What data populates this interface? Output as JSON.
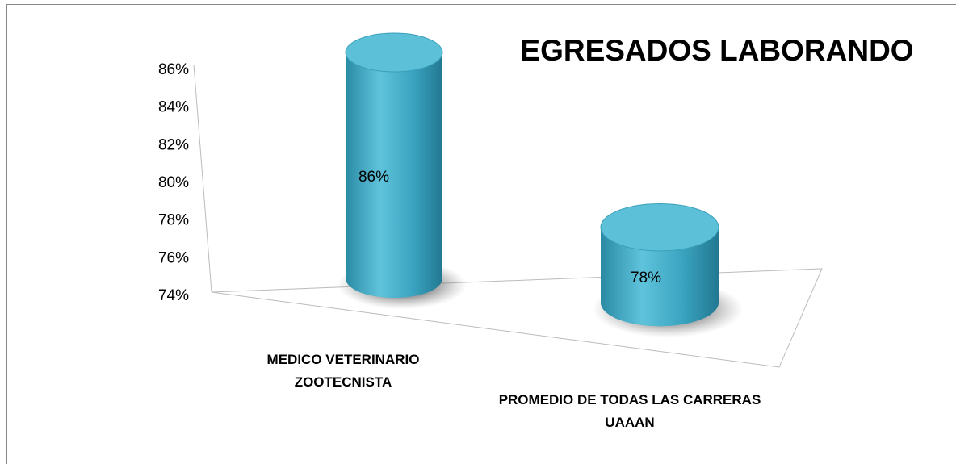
{
  "chart_data": {
    "type": "bar3d",
    "title": "EGRESADOS LABORANDO",
    "categories": [
      "MEDICO VETERINARIO ZOOTECNISTA",
      "PROMEDIO DE TODAS LAS CARRERAS UAAAN"
    ],
    "values": [
      86,
      78
    ],
    "value_labels": [
      "86%",
      "78%"
    ],
    "color": "#4bacc6",
    "ylim": [
      74,
      86
    ],
    "yticks": [
      {
        "value": 74,
        "label": "74%"
      },
      {
        "value": 76,
        "label": "76%"
      },
      {
        "value": 78,
        "label": "78%"
      },
      {
        "value": 80,
        "label": "80%"
      },
      {
        "value": 82,
        "label": "82%"
      },
      {
        "value": 84,
        "label": "84%"
      },
      {
        "value": 86,
        "label": "86%"
      }
    ]
  }
}
